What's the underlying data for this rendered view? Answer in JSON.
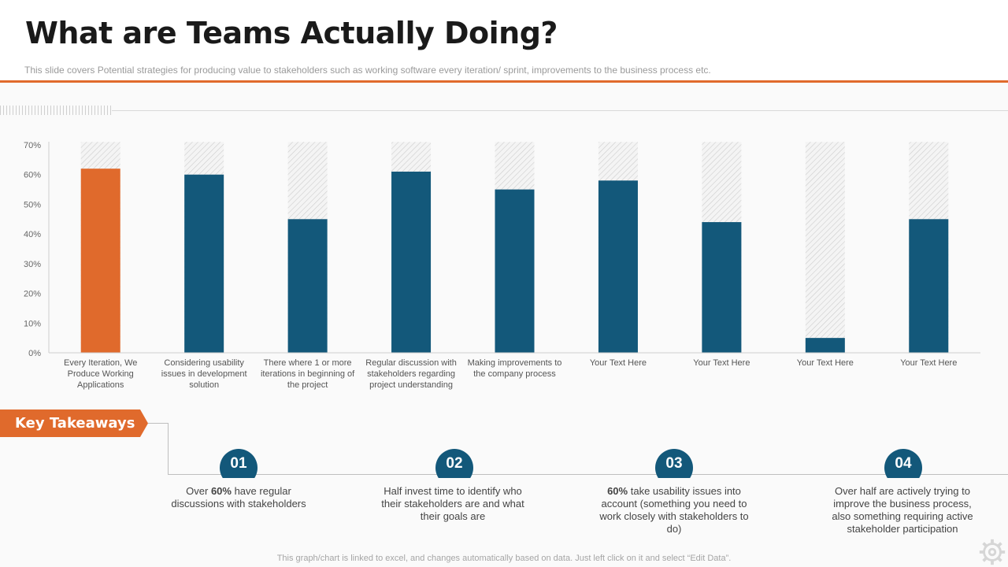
{
  "page": {
    "title": "What are Teams Actually Doing?",
    "subtitle": "This slide covers Potential strategies for producing value to stakeholders such as working software every  iteration/ sprint, improvements  to the business process etc.",
    "footer": "This graph/chart is linked to excel,  and changes automatically based on data. Just left click on it and select “Edit Data”."
  },
  "chart_data": {
    "type": "bar",
    "categories": [
      "Every Iteration, We Produce Working Applications",
      "Considering usability issues in development solution",
      "There where 1 or more iterations in beginning of the project",
      "Regular discussion with stakeholders regarding project understanding",
      "Making improvements to the company process",
      "Your Text Here",
      "Your Text Here",
      "Your Text Here",
      "Your Text Here"
    ],
    "category_lines": [
      [
        "Every Iteration, We",
        "Produce Working",
        "Applications"
      ],
      [
        "Considering usability",
        "issues in development",
        "solution"
      ],
      [
        "There where 1 or more",
        "iterations in beginning of",
        "the project"
      ],
      [
        "Regular discussion with",
        "stakeholders regarding",
        "project understanding"
      ],
      [
        "Making improvements to",
        "the company process"
      ],
      [
        "Your Text Here"
      ],
      [
        "Your Text Here"
      ],
      [
        "Your Text Here"
      ],
      [
        "Your Text Here"
      ]
    ],
    "values": [
      62,
      60,
      45,
      61,
      55,
      58,
      44,
      5,
      45
    ],
    "background_value": 71,
    "ylim": [
      0,
      70
    ],
    "yticks": [
      0,
      10,
      20,
      30,
      40,
      50,
      60,
      70
    ],
    "ytick_labels": [
      "0%",
      "10%",
      "20%",
      "30%",
      "40%",
      "50%",
      "60%",
      "70%"
    ],
    "highlight_index": 0,
    "colors": {
      "bar": "#13587a",
      "highlight": "#e06a2c",
      "background_bar_hatch": "#c8c8c8"
    },
    "grid": false,
    "legend": "none"
  },
  "takeaways": {
    "label": "Key Takeaways",
    "items": [
      {
        "number": "01",
        "pre": "Over ",
        "bold": "60%",
        "post": " have regular discussions with stakeholders"
      },
      {
        "number": "02",
        "pre": "Half invest time to identify who their stakeholders are and what their goals are",
        "bold": "",
        "post": ""
      },
      {
        "number": "03",
        "pre": "",
        "bold": "60%",
        "post": " take usability issues into account (something you need to work closely with stakeholders to do)"
      },
      {
        "number": "04",
        "pre": "Over half are actively trying to improve the business process, also something requiring active stakeholder participation",
        "bold": "",
        "post": ""
      }
    ]
  },
  "icons": {
    "settings": "gear-icon"
  }
}
